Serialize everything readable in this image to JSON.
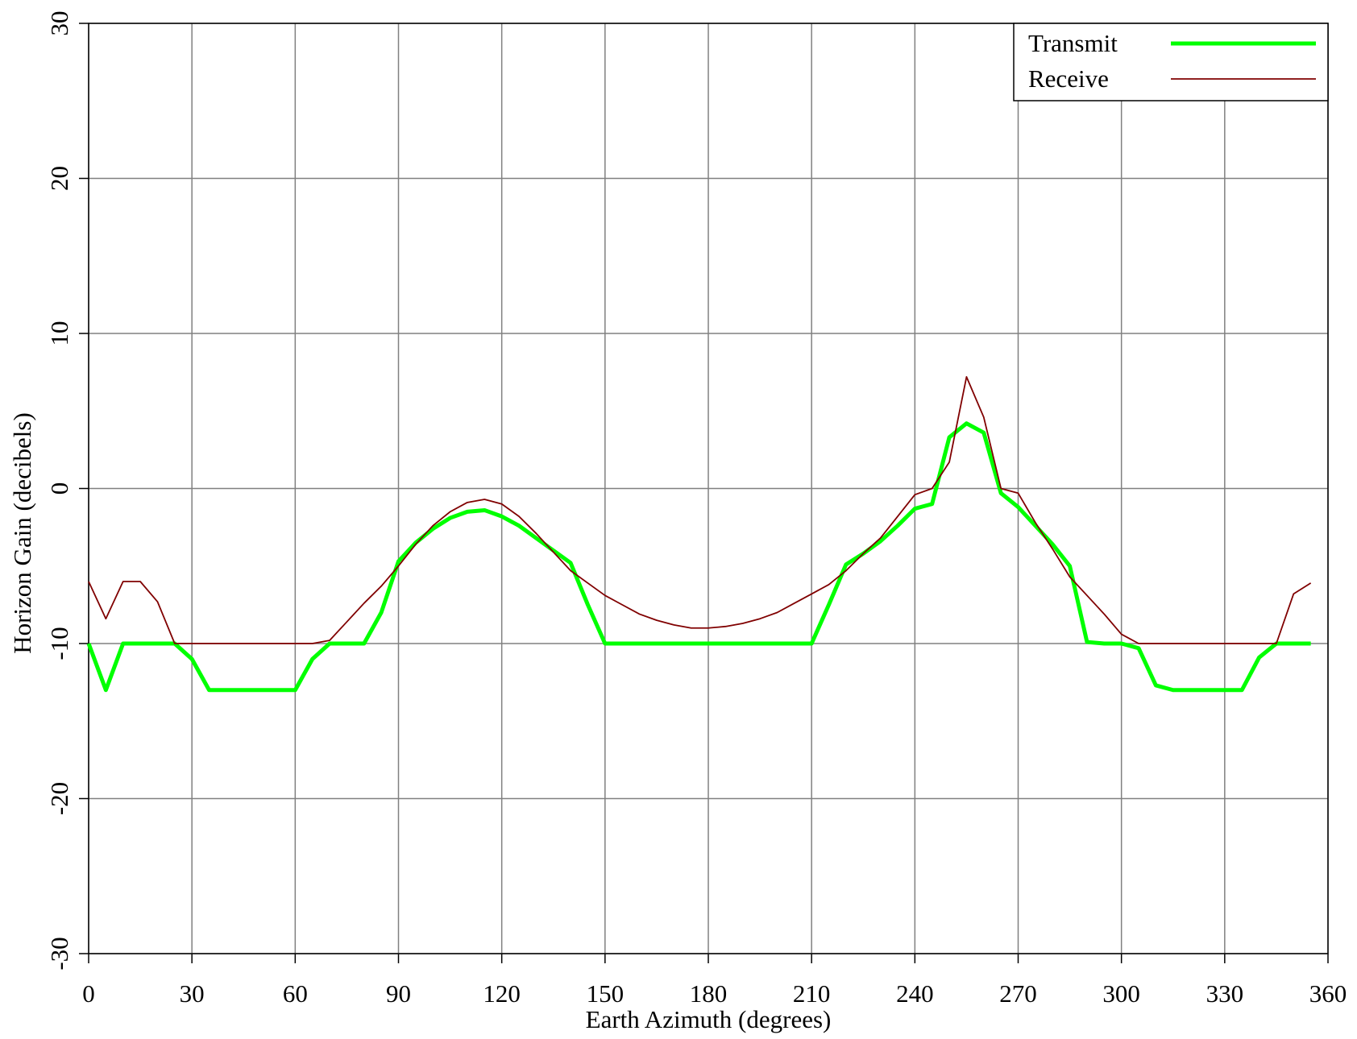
{
  "chart_data": {
    "type": "line",
    "x_label": "Earth Azimuth (degrees)",
    "y_label": "Horizon Gain (decibels)",
    "x": [
      0,
      5,
      10,
      15,
      20,
      25,
      30,
      35,
      40,
      45,
      50,
      55,
      60,
      65,
      70,
      75,
      80,
      85,
      90,
      95,
      100,
      105,
      110,
      115,
      120,
      125,
      130,
      135,
      140,
      145,
      150,
      155,
      160,
      165,
      170,
      175,
      180,
      185,
      190,
      195,
      200,
      205,
      210,
      215,
      220,
      225,
      230,
      235,
      240,
      245,
      250,
      255,
      260,
      265,
      270,
      275,
      280,
      285,
      290,
      295,
      300,
      305,
      310,
      315,
      320,
      325,
      330,
      335,
      340,
      345,
      350,
      355
    ],
    "series": [
      {
        "name": "Transmit",
        "color": "#00ff00",
        "values": [
          -10,
          -13,
          -10,
          -10,
          -10,
          -10,
          -11,
          -13,
          -13,
          -13,
          -13,
          -13,
          -13,
          -11,
          -10,
          -10,
          -10,
          -8,
          -4.7,
          -3.5,
          -2.6,
          -1.9,
          -1.5,
          -1.4,
          -1.8,
          -2.4,
          -3.2,
          -4,
          -4.8,
          -7.5,
          -10,
          -10,
          -10,
          -10,
          -10,
          -10,
          -10,
          -10,
          -10,
          -10,
          -10,
          -10,
          -10,
          -7.5,
          -4.9,
          -4.2,
          -3.4,
          -2.4,
          -1.3,
          -1,
          3.3,
          4.2,
          3.6,
          -0.3,
          -1.2,
          -2.4,
          -3.6,
          -5,
          -9.9,
          -10,
          -10,
          -10.3,
          -12.7,
          -13,
          -13,
          -13,
          -13,
          -13,
          -10.9,
          -10,
          -10,
          -10
        ]
      },
      {
        "name": "Receive",
        "color": "#800000",
        "values": [
          -6,
          -8.4,
          -6,
          -6,
          -7.3,
          -10,
          -10,
          -10,
          -10,
          -10,
          -10,
          -10,
          -10,
          -10,
          -9.8,
          -8.6,
          -7.4,
          -6.3,
          -5,
          -3.6,
          -2.4,
          -1.5,
          -0.9,
          -0.7,
          -1,
          -1.8,
          -2.9,
          -4.1,
          -5.3,
          -6.1,
          -6.9,
          -7.5,
          -8.1,
          -8.5,
          -8.8,
          -9,
          -9,
          -8.9,
          -8.7,
          -8.4,
          -8,
          -7.4,
          -6.8,
          -6.2,
          -5.3,
          -4.2,
          -3.2,
          -1.8,
          -0.4,
          0,
          1.7,
          7.2,
          4.6,
          0,
          -0.3,
          -2.2,
          -3.9,
          -5.7,
          -6.9,
          -8.1,
          -9.4,
          -10,
          -10,
          -10,
          -10,
          -10,
          -10,
          -10,
          -10,
          -10,
          -6.8,
          -6.1
        ]
      }
    ],
    "xlim": [
      0,
      360
    ],
    "xticks": [
      0,
      30,
      60,
      90,
      120,
      150,
      180,
      210,
      240,
      270,
      300,
      330,
      360
    ],
    "ylim": [
      -30,
      30
    ],
    "yticks": [
      -30,
      -20,
      -10,
      0,
      10,
      20,
      30
    ],
    "grid": true,
    "legend": "upper right"
  }
}
